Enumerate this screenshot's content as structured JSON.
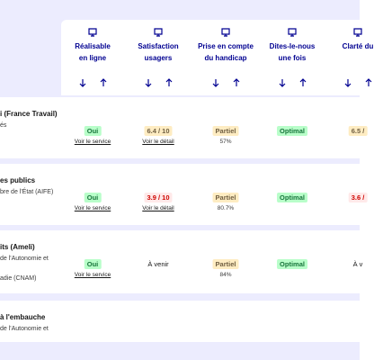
{
  "columns": [
    {
      "lines": [
        "Réalisable",
        "en ligne"
      ]
    },
    {
      "lines": [
        "Satisfaction",
        "usagers"
      ]
    },
    {
      "lines": [
        "Prise en compte",
        "du handicap"
      ]
    },
    {
      "lines": [
        "Dites-le-nous",
        "une fois"
      ]
    },
    {
      "lines": [
        "Clarté du"
      ]
    }
  ],
  "rows": [
    {
      "lines": [
        "i (France Travail)",
        "és"
      ],
      "cells": [
        {
          "badge": "Oui",
          "kind": "success",
          "note": "Voir le service"
        },
        {
          "badge": "6.4 / 10",
          "kind": "warning",
          "note": "Voir le détail"
        },
        {
          "badge": "Partiel",
          "kind": "warning",
          "note": "57%"
        },
        {
          "badge": "Optimal",
          "kind": "success"
        },
        {
          "badge": "6.5 /",
          "kind": "warning"
        }
      ]
    },
    {
      "lines": [
        "es publics",
        "bre de l'État (AIFE)"
      ],
      "cells": [
        {
          "badge": "Oui",
          "kind": "success",
          "note": "Voir le service"
        },
        {
          "badge": "3.9 / 10",
          "kind": "error",
          "note": "Voir le détail"
        },
        {
          "badge": "Partiel",
          "kind": "warning",
          "note": "80.7%"
        },
        {
          "badge": "Optimal",
          "kind": "success"
        },
        {
          "badge": "3.6 /",
          "kind": "error"
        }
      ]
    },
    {
      "lines": [
        "its (Ameli)",
        "de l'Autonomie et",
        "adie (CNAM)"
      ],
      "cells": [
        {
          "badge": "Oui",
          "kind": "success",
          "note": "Voir le service"
        },
        {
          "text": "À venir"
        },
        {
          "badge": "Partiel",
          "kind": "warning",
          "note": "84%"
        },
        {
          "badge": "Optimal",
          "kind": "success"
        },
        {
          "text": "À v"
        }
      ]
    },
    {
      "lines": [
        "à l'embauche",
        "de l'Autonomie et"
      ],
      "cells": []
    }
  ]
}
